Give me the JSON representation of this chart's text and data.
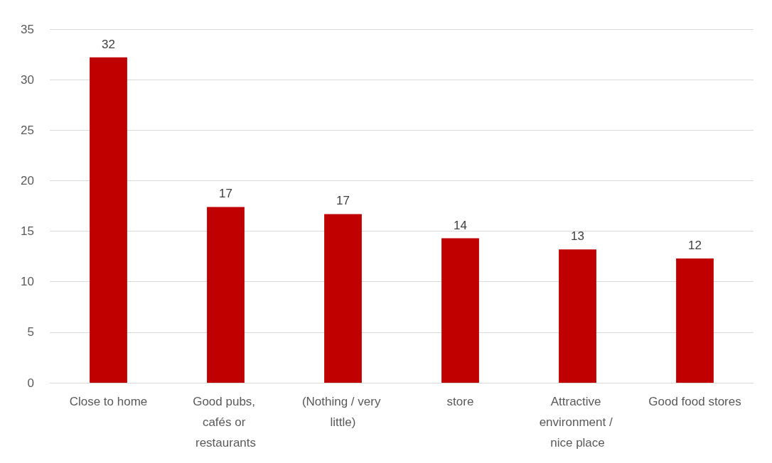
{
  "chart_data": {
    "type": "bar",
    "categories": [
      "Close to home",
      "Good pubs, cafés or restaurants",
      "(Nothing / very little)",
      "store",
      "Attractive environment / nice place",
      "Good food stores"
    ],
    "values": [
      32.2,
      17.4,
      16.7,
      14.3,
      13.2,
      12.3
    ],
    "value_labels": [
      "32",
      "17",
      "17",
      "14",
      "13",
      "12"
    ],
    "color": "#c00000",
    "ylim": [
      0,
      35
    ],
    "yticks": [
      0,
      5,
      10,
      15,
      20,
      25,
      30,
      35
    ],
    "grid": "y"
  }
}
